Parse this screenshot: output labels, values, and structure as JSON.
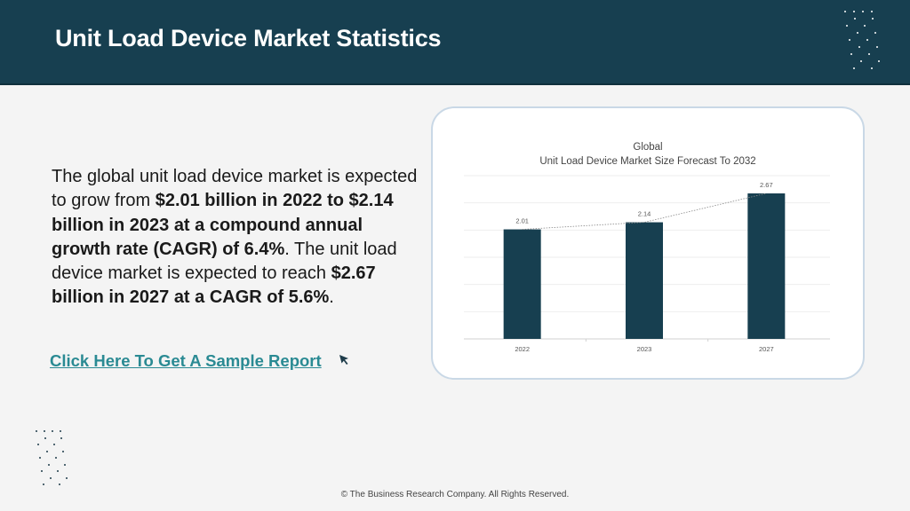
{
  "header": {
    "title": "Unit Load Device Market Statistics"
  },
  "body": {
    "t1": "The global unit load device market is expected to grow from ",
    "b1": "$2.01 billion in 2022 to $2.14 billion in 2023 at a compound annual growth rate (CAGR) of 6.4%",
    "t2": ". The unit load device market is expected to reach ",
    "b2": "$2.67 billion in 2027 at a CAGR of 5.6%",
    "t3": "."
  },
  "cta": {
    "label": "Click Here To Get A Sample Report"
  },
  "footer": {
    "text": "© The Business Research Company. All Rights Reserved."
  },
  "colors": {
    "header": "#173f50",
    "bar": "#173f50",
    "link": "#2a8a93"
  },
  "chart_data": {
    "type": "bar",
    "title": "Global",
    "subtitle": "Unit Load Device Market Size Forecast To 2032",
    "categories": [
      "2022",
      "2023",
      "2027"
    ],
    "values": [
      2.01,
      2.14,
      2.67
    ],
    "data_labels": [
      "2.01",
      "2.14",
      "2.67"
    ],
    "trendline": "dotted",
    "grid": true,
    "legend": "none",
    "xlabel": "",
    "ylabel": "",
    "ylim": [
      0,
      2.67
    ]
  }
}
